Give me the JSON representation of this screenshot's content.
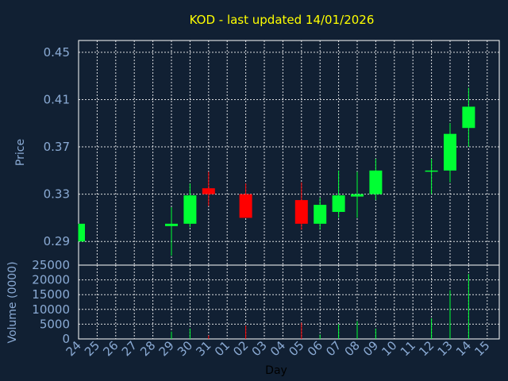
{
  "chart_data": [
    {
      "type": "candlestick",
      "title": "KOD - last updated 14/01/2026",
      "ylabel": "Price",
      "xlabel": "",
      "ylim": [
        0.27,
        0.46
      ],
      "y_ticks": [
        "0.29",
        "0.33",
        "0.37",
        "0.41",
        "0.45"
      ],
      "grid": true,
      "up_color": "#00ff33",
      "down_color": "#ff0000",
      "wick_up_color": "#00ff33",
      "wick_down_color": "#ff0000",
      "categories": [
        "24",
        "25",
        "26",
        "27",
        "28",
        "29",
        "30",
        "31",
        "01",
        "02",
        "03",
        "04",
        "05",
        "06",
        "07",
        "08",
        "09",
        "10",
        "11",
        "12",
        "13",
        "14",
        "15"
      ],
      "candles": [
        {
          "x": "24",
          "open": 0.29,
          "close": 0.305,
          "high": 0.305,
          "low": 0.29
        },
        {
          "x": "29",
          "open": 0.303,
          "close": 0.305,
          "high": 0.319,
          "low": 0.278
        },
        {
          "x": "30",
          "open": 0.305,
          "close": 0.329,
          "high": 0.339,
          "low": 0.302
        },
        {
          "x": "31",
          "open": 0.335,
          "close": 0.33,
          "high": 0.349,
          "low": 0.32
        },
        {
          "x": "02",
          "open": 0.33,
          "close": 0.31,
          "high": 0.339,
          "low": 0.31
        },
        {
          "x": "05",
          "open": 0.325,
          "close": 0.305,
          "high": 0.34,
          "low": 0.3
        },
        {
          "x": "06",
          "open": 0.305,
          "close": 0.321,
          "high": 0.327,
          "low": 0.3
        },
        {
          "x": "07",
          "open": 0.315,
          "close": 0.329,
          "high": 0.35,
          "low": 0.31
        },
        {
          "x": "08",
          "open": 0.328,
          "close": 0.33,
          "high": 0.349,
          "low": 0.31
        },
        {
          "x": "09",
          "open": 0.33,
          "close": 0.35,
          "high": 0.36,
          "low": 0.325
        },
        {
          "x": "12",
          "open": 0.349,
          "close": 0.35,
          "high": 0.36,
          "low": 0.33
        },
        {
          "x": "13",
          "open": 0.35,
          "close": 0.381,
          "high": 0.39,
          "low": 0.34
        },
        {
          "x": "14",
          "open": 0.386,
          "close": 0.404,
          "high": 0.42,
          "low": 0.37
        }
      ]
    },
    {
      "type": "bar",
      "ylabel": "Volume (0000)",
      "xlabel": "Day",
      "ylim": [
        0,
        25000
      ],
      "y_ticks": [
        "0",
        "5000",
        "10000",
        "15000",
        "20000",
        "25000"
      ],
      "grid": true,
      "categories": [
        "24",
        "25",
        "26",
        "27",
        "28",
        "29",
        "30",
        "31",
        "01",
        "02",
        "03",
        "04",
        "05",
        "06",
        "07",
        "08",
        "09",
        "10",
        "11",
        "12",
        "13",
        "14",
        "15"
      ],
      "series": [
        {
          "values": [
            {
              "x": "29",
              "y": 2500,
              "color": "#00ff33"
            },
            {
              "x": "30",
              "y": 3500,
              "color": "#00ff33"
            },
            {
              "x": "31",
              "y": 1200,
              "color": "#ff0000"
            },
            {
              "x": "02",
              "y": 4500,
              "color": "#ff0000"
            },
            {
              "x": "05",
              "y": 5500,
              "color": "#ff0000"
            },
            {
              "x": "06",
              "y": 1500,
              "color": "#00ff33"
            },
            {
              "x": "07",
              "y": 5000,
              "color": "#00ff33"
            },
            {
              "x": "08",
              "y": 6000,
              "color": "#00ff33"
            },
            {
              "x": "09",
              "y": 3500,
              "color": "#00ff33"
            },
            {
              "x": "12",
              "y": 7000,
              "color": "#00ff33"
            },
            {
              "x": "13",
              "y": 16500,
              "color": "#00ff33"
            },
            {
              "x": "14",
              "y": 22000,
              "color": "#00ff33"
            }
          ]
        }
      ]
    }
  ]
}
